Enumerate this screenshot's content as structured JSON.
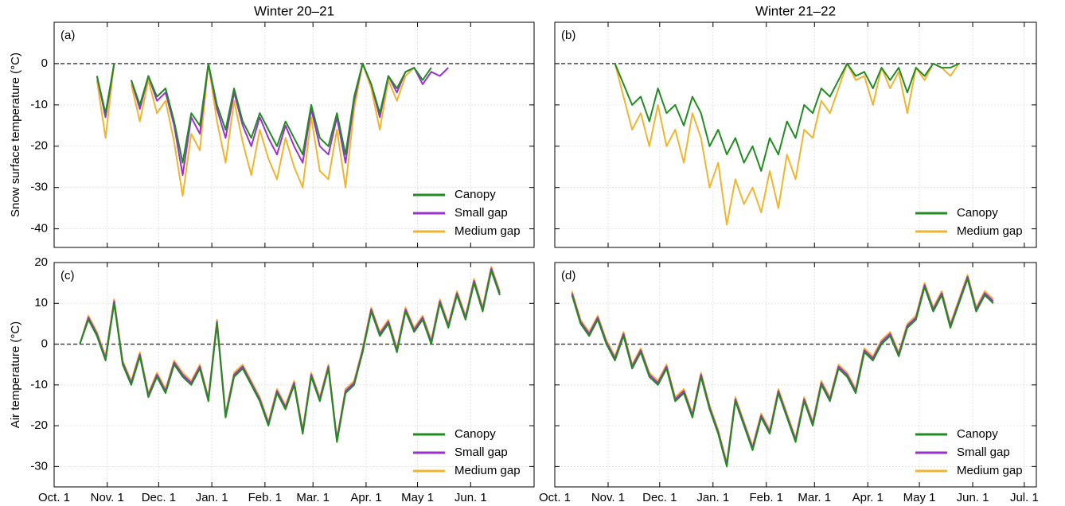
{
  "chart_data": [
    {
      "type": "line",
      "title": "Winter 20–21",
      "title_color": "#ff0000",
      "ylabel": "Snow surface temperature (°C)",
      "panel_label": "(a)",
      "xlim": [
        0,
        280
      ],
      "xticks": [
        0,
        31,
        61,
        92,
        123,
        151,
        182,
        212,
        243
      ],
      "show_xticklabels": false,
      "ylim": [
        -44.5,
        10
      ],
      "yticks": [
        -40,
        -30,
        -20,
        -10,
        0
      ],
      "show_yticklabels": true,
      "grid": true,
      "legend": "lower right",
      "x": [
        25,
        30,
        35,
        40,
        45,
        50,
        55,
        60,
        65,
        70,
        75,
        80,
        85,
        90,
        95,
        100,
        105,
        110,
        115,
        120,
        125,
        130,
        135,
        140,
        145,
        150,
        155,
        160,
        165,
        170,
        175,
        180,
        185,
        190,
        195,
        200,
        205,
        210,
        215,
        220,
        225,
        230
      ],
      "series": [
        {
          "name": "Canopy",
          "color": "#228b22",
          "values": [
            -3,
            -12,
            0,
            null,
            -4,
            -10,
            -3,
            -8,
            -6,
            -14,
            -24,
            -12,
            -15,
            0,
            -10,
            -16,
            -6,
            -14,
            -18,
            -12,
            -16,
            -20,
            -14,
            -18,
            -22,
            -10,
            -18,
            -20,
            -12,
            -22,
            -8,
            0,
            -5,
            -12,
            -3,
            -6,
            -2,
            -1,
            -4,
            -1,
            null,
            null
          ]
        },
        {
          "name": "Small gap",
          "color": "#9932cc",
          "values": [
            -3,
            -13,
            0,
            null,
            -4,
            -11,
            -3,
            -9,
            -7,
            -15,
            -27,
            -13,
            -17,
            0,
            -11,
            -18,
            -7,
            -15,
            -20,
            -13,
            -18,
            -22,
            -15,
            -20,
            -24,
            -11,
            -20,
            -22,
            -13,
            -24,
            -9,
            0,
            -5,
            -13,
            -3,
            -7,
            -2,
            -1,
            -5,
            -2,
            -3,
            -1
          ]
        },
        {
          "name": "Medium gap",
          "color": "#f0b530",
          "values": [
            -4,
            -18,
            0,
            null,
            -5,
            -14,
            -4,
            -12,
            -9,
            -19,
            -32,
            -17,
            -21,
            0,
            -14,
            -24,
            -9,
            -19,
            -27,
            -16,
            -23,
            -28,
            -18,
            -25,
            -30,
            -13,
            -26,
            -28,
            -16,
            -30,
            -11,
            0,
            -6,
            -16,
            -4,
            -9,
            -3,
            -1,
            null,
            null,
            null,
            null
          ]
        }
      ]
    },
    {
      "type": "line",
      "title": "Winter 21–22",
      "title_color": "#0000ff",
      "panel_label": "(b)",
      "xlim": [
        0,
        280
      ],
      "xticks": [
        0,
        31,
        61,
        92,
        123,
        151,
        182,
        212,
        243,
        273
      ],
      "show_xticklabels": false,
      "ylim": [
        -44.5,
        10
      ],
      "yticks": [
        -40,
        -30,
        -20,
        -10,
        0
      ],
      "show_yticklabels": false,
      "grid": true,
      "legend": "lower right",
      "x": [
        35,
        40,
        45,
        50,
        55,
        60,
        65,
        70,
        75,
        80,
        85,
        90,
        95,
        100,
        105,
        110,
        115,
        120,
        125,
        130,
        135,
        140,
        145,
        150,
        155,
        160,
        165,
        170,
        175,
        180,
        185,
        190,
        195,
        200,
        205,
        210,
        215,
        220,
        225,
        230,
        235,
        240
      ],
      "series": [
        {
          "name": "Canopy",
          "color": "#228b22",
          "values": [
            0,
            -5,
            -10,
            -8,
            -14,
            -6,
            -12,
            -10,
            -15,
            -8,
            -12,
            -20,
            -16,
            -22,
            -18,
            -24,
            -20,
            -26,
            -18,
            -22,
            -14,
            -18,
            -10,
            -12,
            -6,
            -8,
            -4,
            0,
            -3,
            -2,
            -6,
            -1,
            -4,
            -1,
            -7,
            -1,
            -3,
            0,
            -1,
            -1,
            0,
            null
          ]
        },
        {
          "name": "Medium gap",
          "color": "#f0b530",
          "values": [
            0,
            -8,
            -16,
            -12,
            -20,
            -10,
            -20,
            -16,
            -24,
            -12,
            -18,
            -30,
            -24,
            -39,
            -28,
            -34,
            -30,
            -36,
            -26,
            -35,
            -22,
            -28,
            -16,
            -18,
            -9,
            -12,
            -6,
            0,
            -4,
            -3,
            -10,
            -1,
            -6,
            -2,
            -12,
            -1,
            -4,
            0,
            -1,
            -3,
            0,
            null
          ]
        }
      ]
    },
    {
      "type": "line",
      "ylabel": "Air temperature (°C)",
      "panel_label": "(c)",
      "xlim": [
        0,
        280
      ],
      "xticks": [
        {
          "value": 0,
          "label": "Oct. 1"
        },
        {
          "value": 31,
          "label": "Nov. 1"
        },
        {
          "value": 61,
          "label": "Dec. 1"
        },
        {
          "value": 92,
          "label": "Jan. 1"
        },
        {
          "value": 123,
          "label": "Feb. 1"
        },
        {
          "value": 151,
          "label": "Mar. 1"
        },
        {
          "value": 182,
          "label": "Apr. 1"
        },
        {
          "value": 212,
          "label": "May 1"
        },
        {
          "value": 243,
          "label": "Jun. 1"
        }
      ],
      "show_xticklabels": true,
      "ylim": [
        -35,
        20
      ],
      "yticks": [
        -30,
        -20,
        -10,
        0,
        10,
        20
      ],
      "show_yticklabels": true,
      "grid": true,
      "legend": "lower right",
      "x": [
        15,
        20,
        25,
        30,
        35,
        40,
        45,
        50,
        55,
        60,
        65,
        70,
        75,
        80,
        85,
        90,
        95,
        100,
        105,
        110,
        115,
        120,
        125,
        130,
        135,
        140,
        145,
        150,
        155,
        160,
        165,
        170,
        175,
        180,
        185,
        190,
        195,
        200,
        205,
        210,
        215,
        220,
        225,
        230,
        235,
        240,
        245,
        250,
        255,
        260,
        265,
        270
      ],
      "series": [
        {
          "name": "Canopy",
          "color": "#228b22",
          "values": [
            0,
            6,
            2,
            -4,
            10,
            -5,
            -10,
            -3,
            -13,
            -8,
            -12,
            -5,
            -8,
            -10,
            -6,
            -14,
            5,
            -18,
            -8,
            -6,
            -10,
            -14,
            -20,
            -12,
            -16,
            -10,
            -22,
            -8,
            -14,
            -6,
            -24,
            -12,
            -10,
            -2,
            8,
            2,
            5,
            -2,
            8,
            3,
            6,
            0,
            10,
            4,
            12,
            6,
            15,
            8,
            18,
            12,
            null,
            null
          ]
        },
        {
          "name": "Small gap",
          "color": "#9932cc",
          "values": [
            0,
            6.5,
            2.5,
            -3.5,
            10.5,
            -4.5,
            -9.5,
            -2.5,
            -12.5,
            -7.5,
            -11.5,
            -4.5,
            -7.5,
            -9.5,
            -5.5,
            -13.5,
            5.5,
            -17.5,
            -7.5,
            -5.5,
            -9.5,
            -13.5,
            -19.5,
            -11.5,
            -15.5,
            -9.5,
            -21.5,
            -7.5,
            -13.5,
            -5.5,
            -23.5,
            -11.5,
            -9.5,
            -1.5,
            8.5,
            2.5,
            5.5,
            -1.5,
            8.5,
            3.5,
            6.5,
            0.5,
            10.5,
            4.5,
            12.5,
            6.5,
            15.5,
            8.5,
            18.5,
            12.5,
            null,
            null
          ]
        },
        {
          "name": "Medium gap",
          "color": "#f0b530",
          "values": [
            0,
            7,
            3,
            -3,
            11,
            -4,
            -9,
            -2,
            -12,
            -7,
            -11,
            -4,
            -7,
            -9,
            -5,
            -13,
            6,
            -17,
            -7,
            -5,
            -9,
            -13,
            -19,
            -11,
            -15,
            -9,
            -21,
            -7,
            -13,
            -5,
            -23,
            -11,
            -9,
            -1,
            9,
            3,
            6,
            -1,
            9,
            4,
            7,
            1,
            11,
            5,
            13,
            7,
            16,
            9,
            19,
            13,
            null,
            null
          ]
        }
      ]
    },
    {
      "type": "line",
      "panel_label": "(d)",
      "xlim": [
        0,
        280
      ],
      "xticks": [
        {
          "value": 0,
          "label": "Oct. 1"
        },
        {
          "value": 31,
          "label": "Nov. 1"
        },
        {
          "value": 61,
          "label": "Dec. 1"
        },
        {
          "value": 92,
          "label": "Jan. 1"
        },
        {
          "value": 123,
          "label": "Feb. 1"
        },
        {
          "value": 151,
          "label": "Mar. 1"
        },
        {
          "value": 182,
          "label": "Apr. 1"
        },
        {
          "value": 212,
          "label": "May 1"
        },
        {
          "value": 243,
          "label": "Jun. 1"
        },
        {
          "value": 273,
          "label": "Jul. 1"
        }
      ],
      "show_xticklabels": true,
      "ylim": [
        -35,
        20
      ],
      "yticks": [
        -30,
        -20,
        -10,
        0,
        10,
        20
      ],
      "show_yticklabels": false,
      "grid": true,
      "legend": "lower right",
      "x": [
        10,
        15,
        20,
        25,
        30,
        35,
        40,
        45,
        50,
        55,
        60,
        65,
        70,
        75,
        80,
        85,
        90,
        95,
        100,
        105,
        110,
        115,
        120,
        125,
        130,
        135,
        140,
        145,
        150,
        155,
        160,
        165,
        170,
        175,
        180,
        185,
        190,
        195,
        200,
        205,
        210,
        215,
        220,
        225,
        230,
        235,
        240,
        245,
        250,
        255,
        260,
        265,
        270
      ],
      "series": [
        {
          "name": "Canopy",
          "color": "#228b22",
          "values": [
            12,
            5,
            2,
            6,
            0,
            -4,
            2,
            -6,
            -2,
            -8,
            -10,
            -6,
            -14,
            -12,
            -18,
            -8,
            -16,
            -22,
            -30,
            -14,
            -20,
            -26,
            -18,
            -22,
            -12,
            -18,
            -24,
            -14,
            -20,
            -10,
            -14,
            -6,
            -8,
            -12,
            -2,
            -4,
            0,
            2,
            -3,
            4,
            6,
            14,
            8,
            12,
            4,
            10,
            16,
            8,
            12,
            10,
            null,
            null,
            null
          ]
        },
        {
          "name": "Small gap",
          "color": "#9932cc",
          "values": [
            12.5,
            5.5,
            2.5,
            6.5,
            0.5,
            -3.5,
            2.5,
            -5.5,
            -1.5,
            -7.5,
            -9.5,
            -5.5,
            -13.5,
            -11.5,
            -17.5,
            -7.5,
            -15.5,
            -21.5,
            -29.5,
            -13.5,
            -19.5,
            -25.5,
            -17.5,
            -21.5,
            -11.5,
            -17.5,
            -23.5,
            -13.5,
            -19.5,
            -9.5,
            -13.5,
            -5.5,
            -7.5,
            -11.5,
            -1.5,
            -3.5,
            0.5,
            2.5,
            -2.5,
            4.5,
            6.5,
            14.5,
            8.5,
            12.5,
            4.5,
            10.5,
            16.5,
            8.5,
            12.5,
            10.5,
            null,
            null,
            null
          ]
        },
        {
          "name": "Medium gap",
          "color": "#f0b530",
          "values": [
            13,
            6,
            3,
            7,
            1,
            -3,
            3,
            -5,
            -1,
            -7,
            -9,
            -5,
            -13,
            -11,
            -17,
            -7,
            -15,
            -21,
            -29,
            -13,
            -19,
            -25,
            -17,
            -21,
            -11,
            -17,
            -23,
            -13,
            -19,
            -9,
            -13,
            -5,
            -7,
            -11,
            -1,
            -3,
            1,
            3,
            -2,
            5,
            7,
            15,
            9,
            13,
            5,
            11,
            17,
            9,
            13,
            11,
            null,
            null,
            null
          ]
        }
      ]
    }
  ]
}
